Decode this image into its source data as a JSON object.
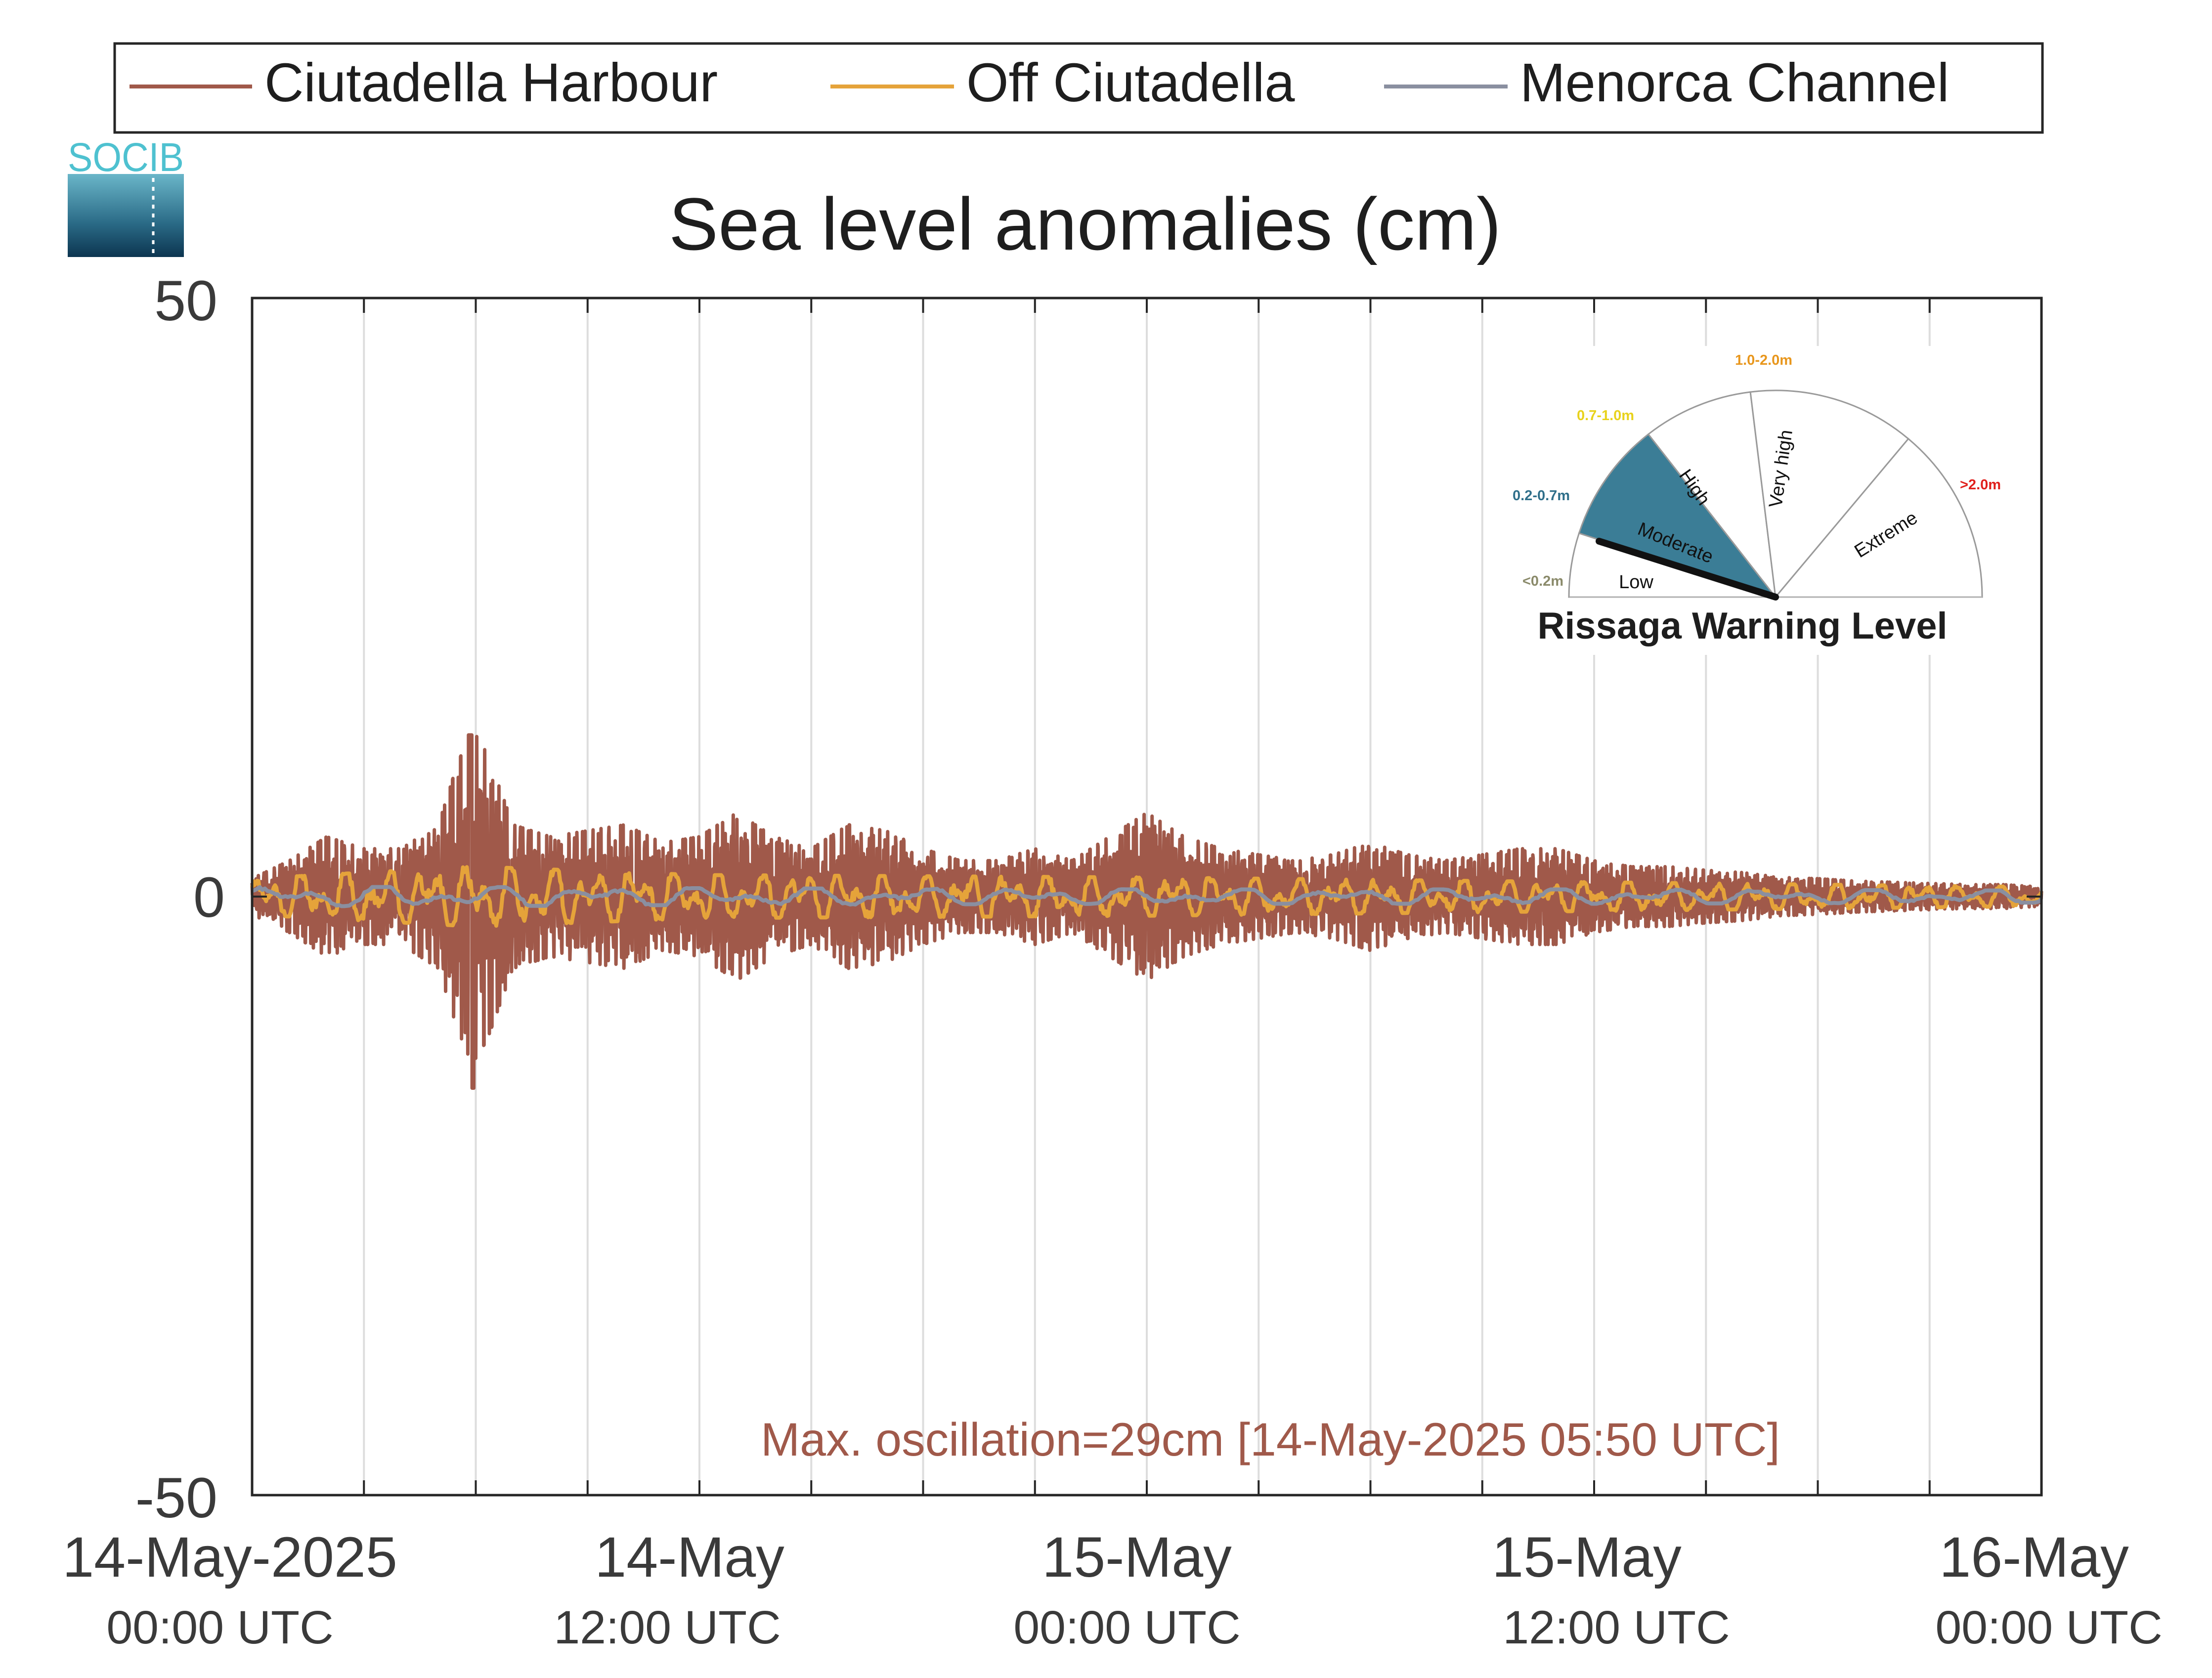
{
  "logo": {
    "text": "SOCIB"
  },
  "legend": [
    {
      "label": "Ciutadella Harbour",
      "color": "#a0594a"
    },
    {
      "label": "Off Ciutadella",
      "color": "#e5a33a"
    },
    {
      "label": "Menorca Channel",
      "color": "#8a8fa0"
    }
  ],
  "annotation": {
    "text": "Max. oscillation=29cm [14-May-2025 05:50 UTC]",
    "color": "#a0594a"
  },
  "gauge": {
    "title": "Rissaga Warning Level",
    "current_level": "Moderate",
    "segments": [
      {
        "label": "Low",
        "range": "<0.2m",
        "range_color": "#8a8a6a",
        "fill": "#ffffff"
      },
      {
        "label": "Moderate",
        "range": "0.2-0.7m",
        "range_color": "#2f6f8a",
        "fill": "#3b7d96"
      },
      {
        "label": "High",
        "range": "0.7-1.0m",
        "range_color": "#e8d21c",
        "fill": "#ffffff"
      },
      {
        "label": "Very high",
        "range": "1.0-2.0m",
        "range_color": "#e8961c",
        "fill": "#ffffff"
      },
      {
        "label": "Extreme",
        "range": ">2.0m",
        "range_color": "#e0201c",
        "fill": "#ffffff"
      }
    ]
  },
  "chart_data": {
    "type": "line",
    "title": "Sea level anomalies (cm)",
    "xlabel": "",
    "ylabel": "",
    "ylim": [
      -50,
      50
    ],
    "xlim_hours": [
      0,
      48
    ],
    "y_ticks": [
      "50",
      "0",
      "-50"
    ],
    "x_ticks": [
      {
        "hour": 0,
        "line1": "14-May-2025",
        "line2": "00:00 UTC"
      },
      {
        "hour": 12,
        "line1": "14-May",
        "line2": "12:00 UTC"
      },
      {
        "hour": 24,
        "line1": "15-May",
        "line2": "00:00 UTC"
      },
      {
        "hour": 36,
        "line1": "15-May",
        "line2": "12:00 UTC"
      },
      {
        "hour": 48,
        "line1": "16-May",
        "line2": "00:00 UTC"
      }
    ],
    "grid_minor_hours": [
      3,
      6,
      9,
      12,
      15,
      18,
      21,
      24,
      27,
      30,
      33,
      36,
      39,
      42,
      45
    ],
    "grid": true,
    "legend_position": "top",
    "series": [
      {
        "name": "Ciutadella Harbour",
        "color": "#a0594a",
        "envelope_hours": [
          0,
          1,
          2,
          3,
          4,
          5,
          5.5,
          5.9,
          6.3,
          7,
          8,
          9,
          10,
          11,
          12,
          13,
          14,
          15,
          16,
          17,
          18,
          19,
          20,
          21,
          22,
          23,
          24,
          25,
          26,
          27,
          28,
          29,
          30,
          31,
          32,
          33,
          34,
          35,
          36,
          37,
          38,
          39,
          40,
          41,
          42,
          43,
          44,
          45,
          46,
          47,
          48
        ],
        "envelope_cm": [
          1.5,
          3,
          5,
          4,
          4,
          6,
          11,
          14,
          12,
          6,
          5,
          5.5,
          6,
          4.5,
          5,
          7,
          5,
          4,
          6,
          5.5,
          4,
          3,
          3,
          4,
          3,
          5,
          7,
          5,
          4,
          3.5,
          3,
          3.5,
          4.5,
          3.5,
          3,
          3.5,
          4,
          4,
          3,
          2.5,
          2.5,
          2.2,
          2,
          1.6,
          1.5,
          1.3,
          1.2,
          1.1,
          1,
          1,
          0.8
        ],
        "min_cm": -16,
        "max_cm": 13.5
      },
      {
        "name": "Off Ciutadella",
        "color": "#e5a33a",
        "envelope_hours": [
          0,
          6,
          12,
          24,
          36,
          48
        ],
        "envelope_cm": [
          1.5,
          2.5,
          1.8,
          1.6,
          1.2,
          0.8
        ]
      },
      {
        "name": "Menorca Channel",
        "color": "#8a8fa0",
        "envelope_hours": [
          0,
          6,
          12,
          24,
          36,
          48
        ],
        "envelope_cm": [
          0.8,
          0.8,
          0.7,
          0.6,
          0.6,
          0.5
        ]
      }
    ]
  }
}
